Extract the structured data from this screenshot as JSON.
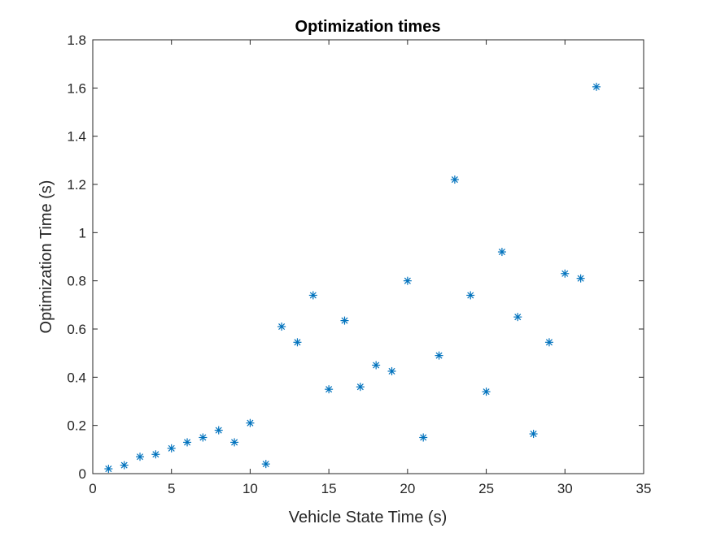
{
  "colors": {
    "marker": "#0072BD",
    "axis": "#262626",
    "background": "#ffffff"
  },
  "chart_data": {
    "type": "scatter",
    "title": "Optimization times",
    "xlabel": "Vehicle State Time (s)",
    "ylabel": "Optimization Time (s)",
    "xlim": [
      0,
      35
    ],
    "ylim": [
      0,
      1.8
    ],
    "xticks": [
      "0",
      "5",
      "10",
      "15",
      "20",
      "25",
      "30",
      "35"
    ],
    "yticks": [
      "0",
      "0.2",
      "0.4",
      "0.6",
      "0.8",
      "1",
      "1.2",
      "1.4",
      "1.6",
      "1.8"
    ],
    "grid": false,
    "legend": false,
    "marker": "asterisk",
    "series": [
      {
        "x": [
          1,
          2,
          3,
          4,
          5,
          6,
          7,
          8,
          9,
          10,
          11,
          12,
          13,
          14,
          15,
          16,
          17,
          18,
          19,
          20,
          21,
          22,
          23,
          24,
          25,
          26,
          27,
          28,
          29,
          30,
          31,
          32
        ],
        "y": [
          0.02,
          0.035,
          0.07,
          0.08,
          0.105,
          0.13,
          0.15,
          0.18,
          0.13,
          0.21,
          0.04,
          0.61,
          0.545,
          0.74,
          0.35,
          0.635,
          0.36,
          0.45,
          0.425,
          0.8,
          0.15,
          0.49,
          1.22,
          0.74,
          0.34,
          0.92,
          0.65,
          0.165,
          0.545,
          0.83,
          0.81,
          1.605
        ]
      }
    ]
  }
}
